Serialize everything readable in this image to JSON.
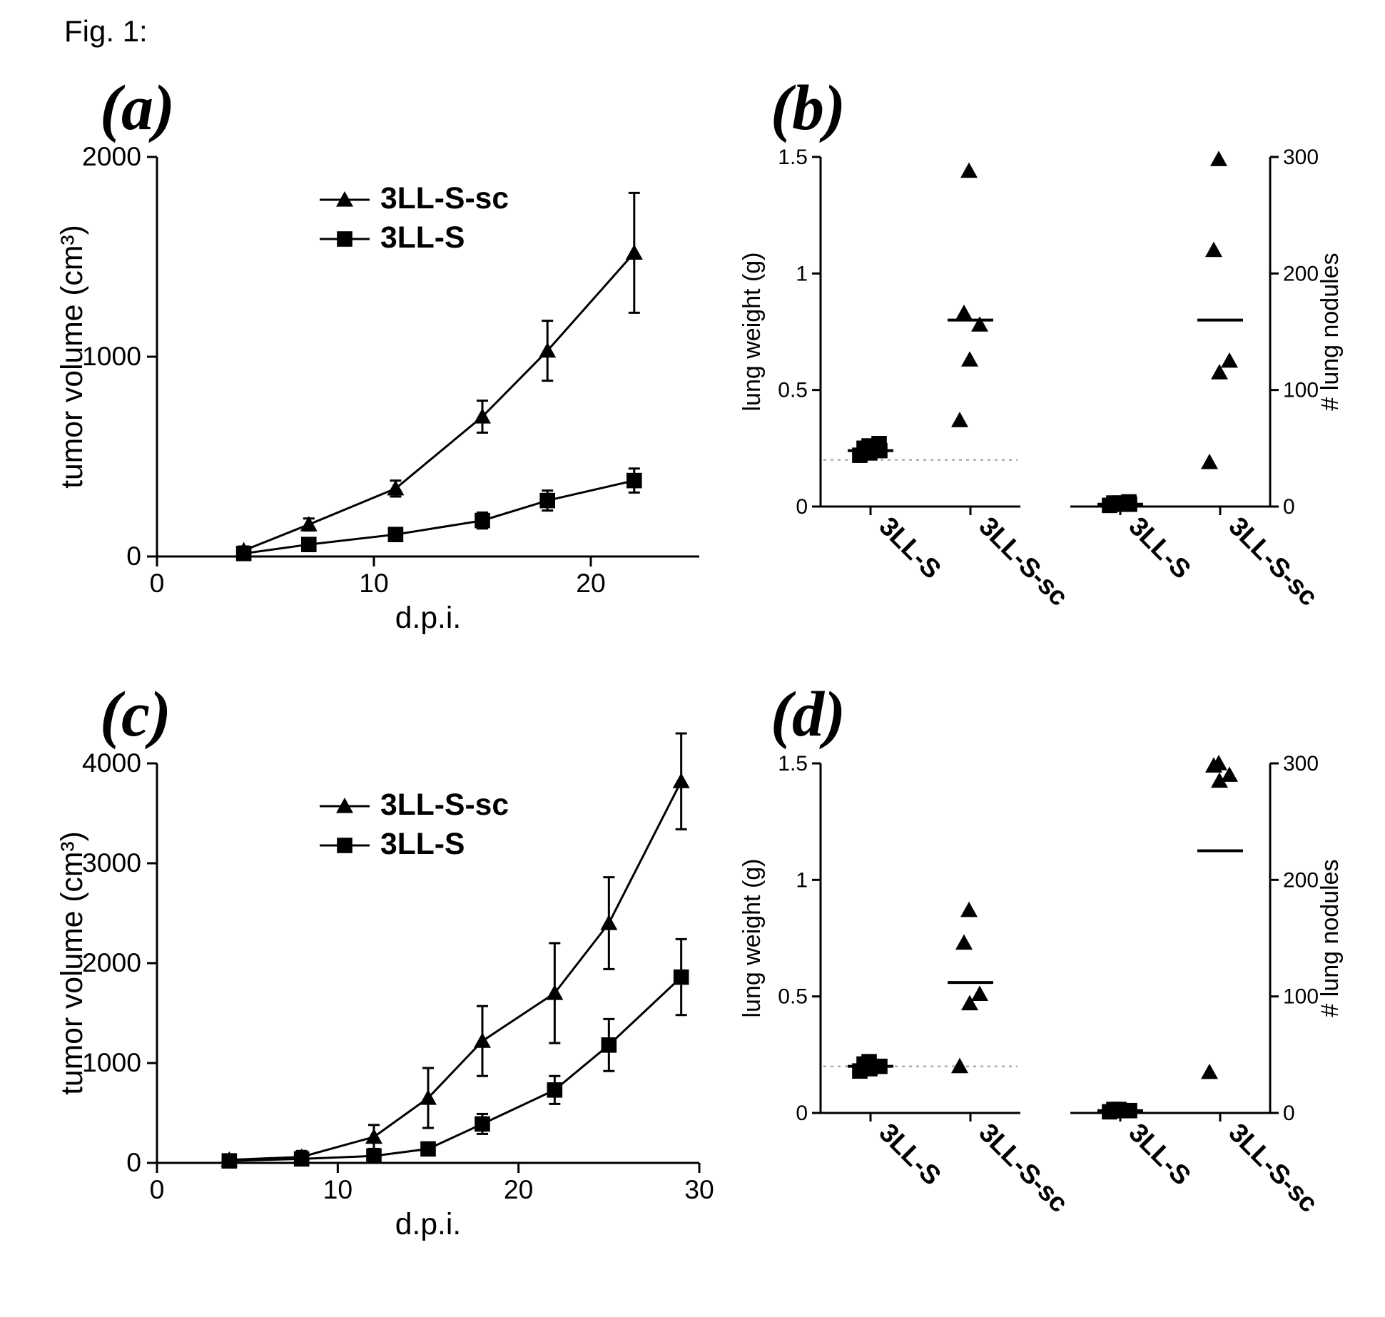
{
  "figure_title": "Fig. 1:",
  "colors": {
    "background": "#ffffff",
    "ink": "#000000",
    "dashed_ref": "#9a9a9a"
  },
  "panel_labels": {
    "a": "(a)",
    "b": "(b)",
    "c": "(c)",
    "d": "(d)"
  },
  "panel_a": {
    "type": "line-errorbar",
    "xlabel": "d.p.i.",
    "ylabel": "tumor volume (cm³)",
    "xlim": [
      0,
      25
    ],
    "ylim": [
      0,
      2000
    ],
    "xticks": [
      0,
      10,
      20
    ],
    "yticks": [
      0,
      1000,
      2000
    ],
    "axis_font_size_pt": 28,
    "label_font_size_pt": 32,
    "line_width": 3,
    "marker_size": 12,
    "legend": {
      "entries": [
        {
          "label": "3LL-S-sc",
          "marker": "triangle"
        },
        {
          "label": "3LL-S",
          "marker": "square"
        }
      ],
      "font_size_pt": 32,
      "font_weight": "bold"
    },
    "series": [
      {
        "name": "3LL-S-sc",
        "marker": "triangle",
        "color": "#000000",
        "x": [
          4,
          7,
          11,
          15,
          18,
          22
        ],
        "y": [
          30,
          160,
          340,
          700,
          1030,
          1520
        ],
        "err": [
          20,
          30,
          40,
          80,
          150,
          300
        ]
      },
      {
        "name": "3LL-S",
        "marker": "square",
        "color": "#000000",
        "x": [
          4,
          7,
          11,
          15,
          18,
          22
        ],
        "y": [
          15,
          60,
          110,
          180,
          280,
          380
        ],
        "err": [
          20,
          30,
          30,
          40,
          50,
          60
        ]
      }
    ]
  },
  "panel_b": {
    "type": "dot-category-dual-y",
    "ylabel_left": "lung weight (g)",
    "ylabel_right": "# lung nodules",
    "ylim_left": [
      0.0,
      1.5
    ],
    "yticks_left": [
      0.0,
      0.5,
      1.0,
      1.5
    ],
    "ylim_right": [
      0,
      300
    ],
    "yticks_right": [
      0,
      100,
      200,
      300
    ],
    "categories": [
      "3LL-S",
      "3LL-S-sc"
    ],
    "category_font_size_pt": 28,
    "marker_size": 12,
    "point_color": "#000000",
    "left_plot": {
      "dashed_ref": 0.2,
      "groups": [
        {
          "cat": "3LL-S",
          "marker": "square",
          "mean": 0.24,
          "values": [
            0.22,
            0.23,
            0.24,
            0.25,
            0.26,
            0.27
          ]
        },
        {
          "cat": "3LL-S-sc",
          "marker": "triangle",
          "mean": 0.8,
          "values": [
            0.37,
            0.63,
            0.78,
            0.83,
            1.44
          ]
        }
      ]
    },
    "right_plot": {
      "groups": [
        {
          "cat": "3LL-S",
          "marker": "square",
          "mean": 2,
          "values": [
            1,
            2,
            2,
            3,
            3,
            4
          ]
        },
        {
          "cat": "3LL-S-sc",
          "marker": "triangle",
          "mean": 160,
          "values": [
            38,
            115,
            125,
            220,
            298
          ]
        }
      ]
    }
  },
  "panel_c": {
    "type": "line-errorbar",
    "xlabel": "d.p.i.",
    "ylabel": "tumor volume (cm³)",
    "xlim": [
      0,
      30
    ],
    "ylim": [
      0,
      4000
    ],
    "xticks": [
      0,
      10,
      20,
      30
    ],
    "yticks": [
      0,
      1000,
      2000,
      3000,
      4000
    ],
    "axis_font_size_pt": 28,
    "label_font_size_pt": 32,
    "line_width": 3,
    "marker_size": 12,
    "legend": {
      "entries": [
        {
          "label": "3LL-S-sc",
          "marker": "triangle"
        },
        {
          "label": "3LL-S",
          "marker": "square"
        }
      ],
      "font_size_pt": 32,
      "font_weight": "bold"
    },
    "series": [
      {
        "name": "3LL-S-sc",
        "marker": "triangle",
        "color": "#000000",
        "x": [
          4,
          8,
          12,
          15,
          18,
          22,
          25,
          29
        ],
        "y": [
          30,
          60,
          260,
          650,
          1220,
          1700,
          2400,
          3820
        ],
        "err": [
          40,
          60,
          120,
          300,
          350,
          500,
          460,
          480
        ]
      },
      {
        "name": "3LL-S",
        "marker": "square",
        "color": "#000000",
        "x": [
          4,
          8,
          12,
          15,
          18,
          22,
          25,
          29
        ],
        "y": [
          20,
          40,
          70,
          140,
          390,
          730,
          1180,
          1860
        ],
        "err": [
          30,
          30,
          40,
          60,
          100,
          140,
          260,
          380
        ]
      }
    ]
  },
  "panel_d": {
    "type": "dot-category-dual-y",
    "ylabel_left": "lung weight (g)",
    "ylabel_right": "# lung nodules",
    "ylim_left": [
      0.0,
      1.5
    ],
    "yticks_left": [
      0.0,
      0.5,
      1.0,
      1.5
    ],
    "ylim_right": [
      0,
      300
    ],
    "yticks_right": [
      0,
      100,
      200,
      300
    ],
    "categories": [
      "3LL-S",
      "3LL-S-sc"
    ],
    "category_font_size_pt": 28,
    "marker_size": 12,
    "point_color": "#000000",
    "left_plot": {
      "dashed_ref": 0.2,
      "groups": [
        {
          "cat": "3LL-S",
          "marker": "square",
          "mean": 0.2,
          "values": [
            0.18,
            0.19,
            0.2,
            0.21,
            0.22
          ]
        },
        {
          "cat": "3LL-S-sc",
          "marker": "triangle",
          "mean": 0.56,
          "values": [
            0.2,
            0.47,
            0.51,
            0.73,
            0.87
          ]
        }
      ]
    },
    "right_plot": {
      "groups": [
        {
          "cat": "3LL-S",
          "marker": "square",
          "mean": 2,
          "values": [
            1,
            2,
            2,
            3,
            3
          ]
        },
        {
          "cat": "3LL-S-sc",
          "marker": "triangle",
          "mean": 225,
          "values": [
            35,
            285,
            290,
            298,
            300
          ]
        }
      ]
    }
  }
}
